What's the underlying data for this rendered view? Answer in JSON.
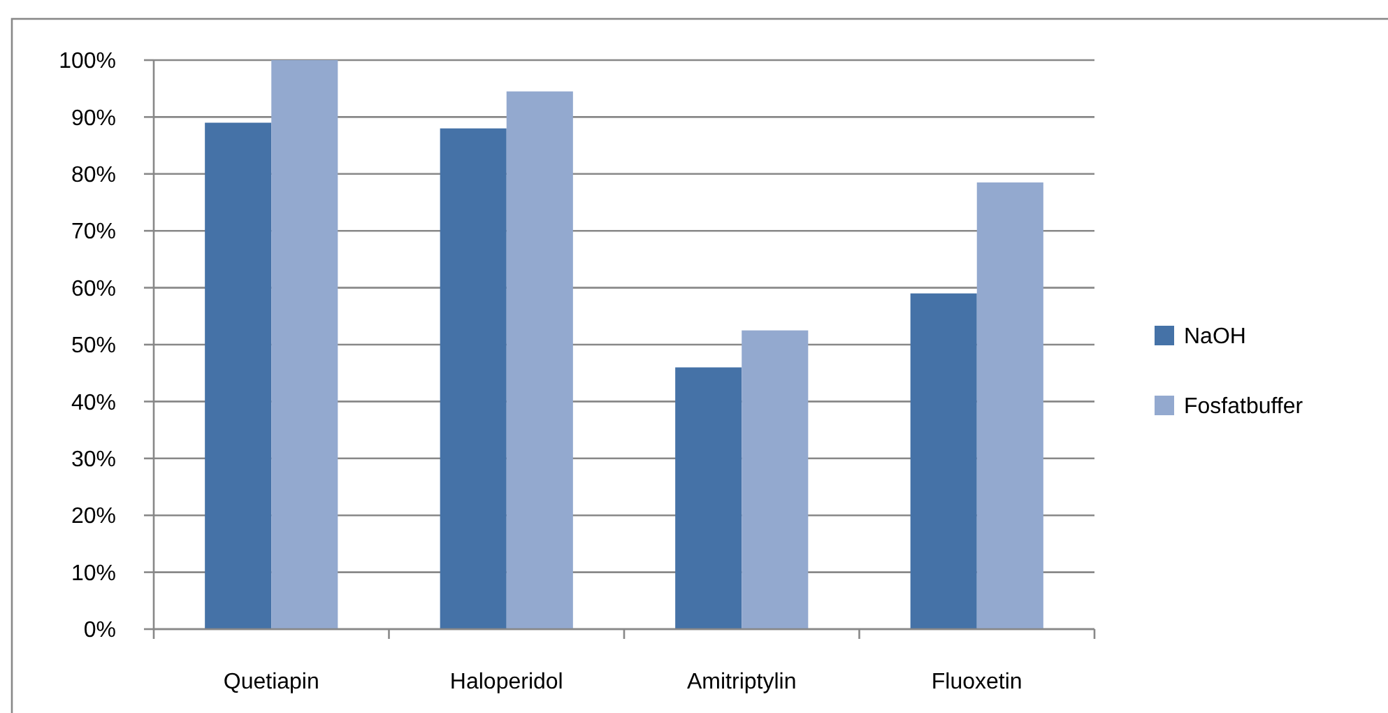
{
  "chart_data": {
    "type": "bar",
    "categories": [
      "Quetiapin",
      "Haloperidol",
      "Amitriptylin",
      "Fluoxetin"
    ],
    "series": [
      {
        "name": "NaOH",
        "color": "#4572a7",
        "values": [
          89,
          88,
          46,
          59
        ]
      },
      {
        "name": "Fosfatbuffer",
        "color": "#93a9cf",
        "values": [
          100,
          94.5,
          52.5,
          78.5
        ]
      }
    ],
    "ylim": [
      0,
      100
    ],
    "yticks": [
      {
        "value": 0,
        "label": "0%"
      },
      {
        "value": 10,
        "label": "10%"
      },
      {
        "value": 20,
        "label": "20%"
      },
      {
        "value": 30,
        "label": "30%"
      },
      {
        "value": 40,
        "label": "40%"
      },
      {
        "value": 50,
        "label": "50%"
      },
      {
        "value": 60,
        "label": "60%"
      },
      {
        "value": 70,
        "label": "70%"
      },
      {
        "value": 80,
        "label": "80%"
      },
      {
        "value": 90,
        "label": "90%"
      },
      {
        "value": 100,
        "label": "100%"
      }
    ],
    "grid": "y",
    "legend": "right"
  }
}
